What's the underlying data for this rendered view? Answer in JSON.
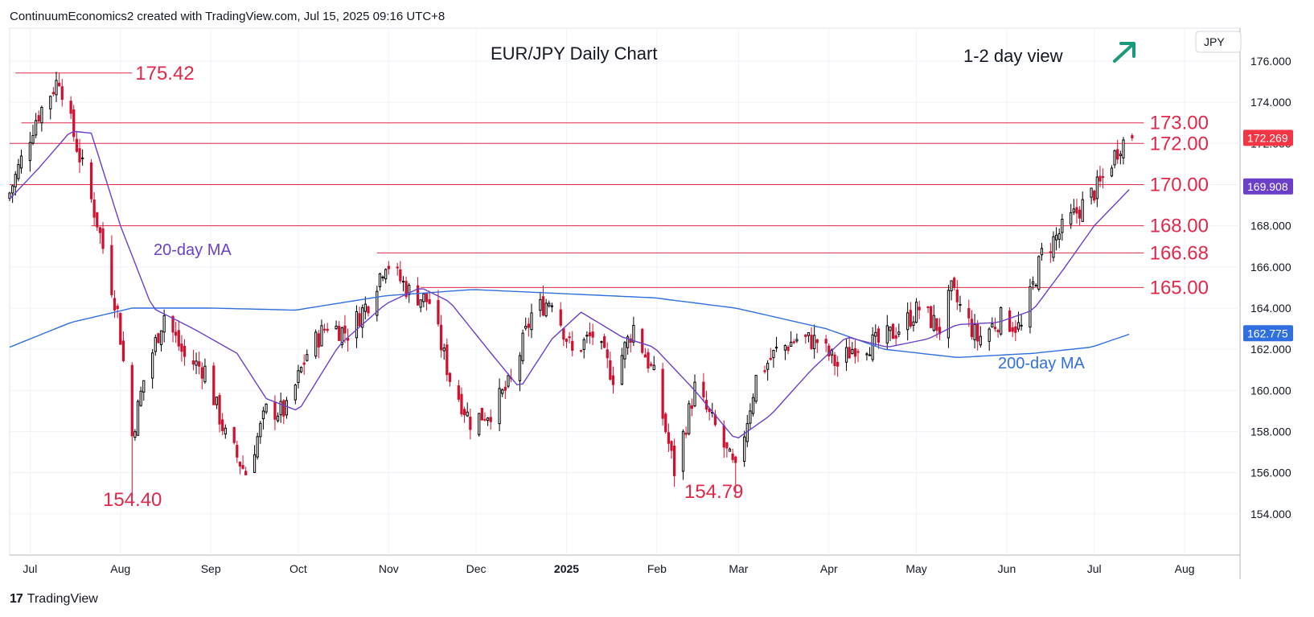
{
  "header": {
    "credit": "ContinuumEconomics2 created with TradingView.com, Jul 15, 2025 09:16 UTC+8"
  },
  "footer": {
    "brand": "TradingView"
  },
  "colors": {
    "up": "#000000",
    "down": "#d0102f",
    "level_line": "#e0294a",
    "level_text": "#e0294a",
    "ma20": "#6b3fc8",
    "ma200": "#2f6fe0",
    "arrow": "#1a9a7a",
    "last_badge": "#f23645",
    "ma20_badge": "#6b3fc8",
    "ma200_badge": "#2f6fe0"
  },
  "chart_data": {
    "type": "candlestick",
    "title": "EUR/JPY Daily Chart",
    "view_label": "1-2 day view",
    "view_icon": "arrow-up-right-icon",
    "currency_label": "JPY",
    "ylim": [
      152.0,
      177.6
    ],
    "y_ticks": [
      "176.000",
      "174.000",
      "172.000",
      "170.000",
      "168.000",
      "166.000",
      "164.000",
      "162.000",
      "160.000",
      "158.000",
      "156.000",
      "154.000"
    ],
    "x_ticks": [
      "Jul",
      "Aug",
      "Sep",
      "Oct",
      "Nov",
      "Dec",
      "2025",
      "Feb",
      "Mar",
      "Apr",
      "May",
      "Jun",
      "Jul",
      "Aug"
    ],
    "levels": [
      {
        "value": 175.42,
        "label": "175.42"
      },
      {
        "value": 173.0,
        "label": "173.00"
      },
      {
        "value": 172.0,
        "label": "172.00"
      },
      {
        "value": 170.0,
        "label": "170.00"
      },
      {
        "value": 168.0,
        "label": "168.00"
      },
      {
        "value": 166.68,
        "label": "166.68"
      },
      {
        "value": 165.0,
        "label": "165.00"
      }
    ],
    "annotations": [
      {
        "text": "154.40",
        "value": 154.4
      },
      {
        "text": "154.79",
        "value": 154.79
      },
      {
        "text": "20-day MA"
      },
      {
        "text": "200-day MA"
      }
    ],
    "badges": [
      {
        "value": 172.269,
        "label": "172.269",
        "kind": "last"
      },
      {
        "value": 169.908,
        "label": "169.908",
        "kind": "ma20"
      },
      {
        "value": 162.775,
        "label": "162.775",
        "kind": "ma200"
      }
    ],
    "close_anchors": [
      [
        "2024-06-24",
        169.6
      ],
      [
        "2024-07-03",
        173.2
      ],
      [
        "2024-07-11",
        175.2
      ],
      [
        "2024-07-16",
        172.4
      ],
      [
        "2024-07-24",
        168.2
      ],
      [
        "2024-07-31",
        163.8
      ],
      [
        "2024-08-05",
        157.8
      ],
      [
        "2024-08-09",
        160.5
      ],
      [
        "2024-08-16",
        163.7
      ],
      [
        "2024-08-23",
        161.6
      ],
      [
        "2024-08-30",
        161.0
      ],
      [
        "2024-09-06",
        157.8
      ],
      [
        "2024-09-13",
        156.0
      ],
      [
        "2024-09-20",
        159.0
      ],
      [
        "2024-09-27",
        159.0
      ],
      [
        "2024-10-04",
        161.8
      ],
      [
        "2024-10-11",
        163.2
      ],
      [
        "2024-10-18",
        162.8
      ],
      [
        "2024-10-25",
        164.3
      ],
      [
        "2024-10-31",
        166.3
      ],
      [
        "2024-11-08",
        164.8
      ],
      [
        "2024-11-15",
        164.3
      ],
      [
        "2024-11-22",
        160.6
      ],
      [
        "2024-11-29",
        158.5
      ],
      [
        "2024-12-06",
        159.0
      ],
      [
        "2024-12-13",
        160.4
      ],
      [
        "2024-12-20",
        163.7
      ],
      [
        "2024-12-27",
        164.5
      ],
      [
        "2025-01-03",
        161.8
      ],
      [
        "2025-01-10",
        162.7
      ],
      [
        "2025-01-17",
        160.7
      ],
      [
        "2025-01-24",
        163.1
      ],
      [
        "2025-01-31",
        160.7
      ],
      [
        "2025-02-07",
        156.1
      ],
      [
        "2025-02-14",
        160.1
      ],
      [
        "2025-02-21",
        158.2
      ],
      [
        "2025-02-28",
        156.0
      ],
      [
        "2025-03-07",
        160.6
      ],
      [
        "2025-03-14",
        161.9
      ],
      [
        "2025-03-21",
        162.5
      ],
      [
        "2025-03-28",
        162.4
      ],
      [
        "2025-04-04",
        161.2
      ],
      [
        "2025-04-10",
        162.2
      ],
      [
        "2025-04-18",
        162.3
      ],
      [
        "2025-04-25",
        163.0
      ],
      [
        "2025-05-02",
        164.0
      ],
      [
        "2025-05-09",
        163.0
      ],
      [
        "2025-05-13",
        164.8
      ],
      [
        "2025-05-22",
        162.5
      ],
      [
        "2025-05-30",
        163.5
      ],
      [
        "2025-06-06",
        163.0
      ],
      [
        "2025-06-13",
        166.6
      ],
      [
        "2025-06-20",
        167.8
      ],
      [
        "2025-06-27",
        169.0
      ],
      [
        "2025-07-03",
        170.0
      ],
      [
        "2025-07-10",
        172.0
      ],
      [
        "2025-07-14",
        172.27
      ]
    ],
    "ma20_anchors": [
      [
        "2024-06-24",
        169.3
      ],
      [
        "2024-07-04",
        170.8
      ],
      [
        "2024-07-15",
        172.6
      ],
      [
        "2024-07-22",
        172.5
      ],
      [
        "2024-08-01",
        168.0
      ],
      [
        "2024-08-12",
        164.0
      ],
      [
        "2024-08-26",
        163.0
      ],
      [
        "2024-09-10",
        161.8
      ],
      [
        "2024-09-20",
        159.6
      ],
      [
        "2024-10-01",
        159.0
      ],
      [
        "2024-10-15",
        162.2
      ],
      [
        "2024-10-31",
        164.2
      ],
      [
        "2024-11-12",
        165.0
      ],
      [
        "2024-11-22",
        164.3
      ],
      [
        "2024-12-05",
        162.0
      ],
      [
        "2024-12-16",
        160.1
      ],
      [
        "2024-12-27",
        162.5
      ],
      [
        "2025-01-06",
        163.8
      ],
      [
        "2025-01-20",
        162.6
      ],
      [
        "2025-01-31",
        162.1
      ],
      [
        "2025-02-14",
        160.0
      ],
      [
        "2025-02-28",
        157.6
      ],
      [
        "2025-03-12",
        158.8
      ],
      [
        "2025-03-26",
        161.0
      ],
      [
        "2025-04-07",
        162.6
      ],
      [
        "2025-04-21",
        162.1
      ],
      [
        "2025-05-05",
        162.5
      ],
      [
        "2025-05-15",
        163.2
      ],
      [
        "2025-05-29",
        163.3
      ],
      [
        "2025-06-10",
        163.9
      ],
      [
        "2025-06-20",
        165.8
      ],
      [
        "2025-07-01",
        168.0
      ],
      [
        "2025-07-14",
        169.908
      ]
    ],
    "ma200_anchors": [
      [
        "2024-06-24",
        162.1
      ],
      [
        "2024-07-15",
        163.3
      ],
      [
        "2024-08-05",
        164.0
      ],
      [
        "2024-09-01",
        164.0
      ],
      [
        "2024-09-30",
        163.9
      ],
      [
        "2024-10-31",
        164.6
      ],
      [
        "2024-11-30",
        164.9
      ],
      [
        "2024-12-31",
        164.7
      ],
      [
        "2025-01-31",
        164.5
      ],
      [
        "2025-02-28",
        164.0
      ],
      [
        "2025-03-31",
        163.0
      ],
      [
        "2025-04-20",
        162.0
      ],
      [
        "2025-05-15",
        161.6
      ],
      [
        "2025-06-10",
        161.8
      ],
      [
        "2025-06-30",
        162.1
      ],
      [
        "2025-07-14",
        162.775
      ]
    ]
  }
}
